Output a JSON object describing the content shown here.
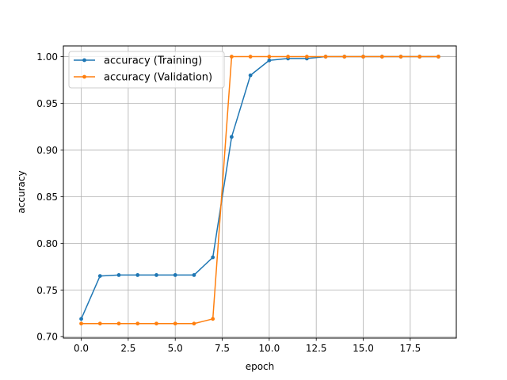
{
  "chart_data": {
    "type": "line",
    "title": "",
    "xlabel": "epoch",
    "ylabel": "accuracy",
    "xlim": [
      -0.95,
      19.95
    ],
    "ylim": [
      0.6985,
      1.0115
    ],
    "xticks": [
      0,
      2.5,
      5,
      7.5,
      10,
      12.5,
      15,
      17.5
    ],
    "xtick_labels": [
      "0.0",
      "2.5",
      "5.0",
      "7.5",
      "10.0",
      "12.5",
      "15.0",
      "17.5"
    ],
    "yticks": [
      0.7,
      0.75,
      0.8,
      0.85,
      0.9,
      0.95,
      1.0
    ],
    "ytick_labels": [
      "0.70",
      "0.75",
      "0.80",
      "0.85",
      "0.90",
      "0.95",
      "1.00"
    ],
    "grid": true,
    "legend_position": "top-left",
    "x": [
      0,
      1,
      2,
      3,
      4,
      5,
      6,
      7,
      8,
      9,
      10,
      11,
      12,
      13,
      14,
      15,
      16,
      17,
      18,
      19
    ],
    "series": [
      {
        "name": "accuracy (Training)",
        "color": "#1f77b4",
        "values": [
          0.719,
          0.765,
          0.766,
          0.766,
          0.766,
          0.766,
          0.766,
          0.785,
          0.914,
          0.98,
          0.996,
          0.998,
          0.998,
          1.0,
          1.0,
          1.0,
          1.0,
          1.0,
          1.0,
          1.0
        ]
      },
      {
        "name": "accuracy (Validation)",
        "color": "#ff7f0e",
        "values": [
          0.714,
          0.714,
          0.714,
          0.714,
          0.714,
          0.714,
          0.714,
          0.719,
          1.0,
          1.0,
          1.0,
          1.0,
          1.0,
          1.0,
          1.0,
          1.0,
          1.0,
          1.0,
          1.0,
          1.0
        ]
      }
    ]
  }
}
